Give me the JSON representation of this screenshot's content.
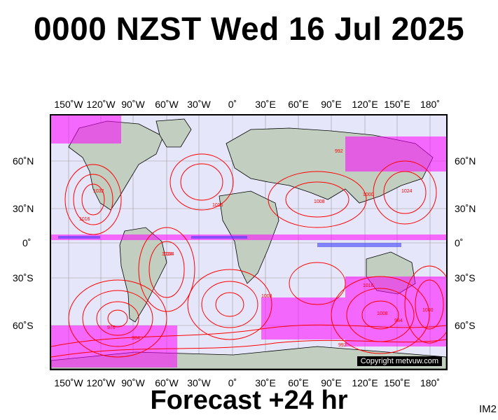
{
  "title": "0000 NZST Wed 16 Jul 2025",
  "footer": "Forecast +24 hr",
  "model_tag": "IM2",
  "copyright": "Copyright metvuw.com",
  "axes": {
    "longitude_ticks": [
      "150˚W",
      "120˚W",
      "90˚W",
      "60˚W",
      "30˚W",
      "0˚",
      "30˚E",
      "60˚E",
      "90˚E",
      "120˚E",
      "150˚E",
      "180˚"
    ],
    "latitude_ticks": [
      "60˚N",
      "30˚N",
      "0˚",
      "30˚S",
      "60˚S"
    ]
  },
  "isobar_labels": [
    "1016",
    "1024",
    "1008",
    "1000",
    "992",
    "984",
    "976",
    "1032",
    "1008",
    "1016",
    "1024",
    "1016",
    "992",
    "984",
    "1000",
    "1008",
    "1024"
  ],
  "colors": {
    "ocean": "#e6e6fb",
    "land": "#c2cfc0",
    "isobar": "#ff0000",
    "precip_light": "#ff00ff",
    "precip_heavy": "#4040ff",
    "grid": "#999999"
  }
}
